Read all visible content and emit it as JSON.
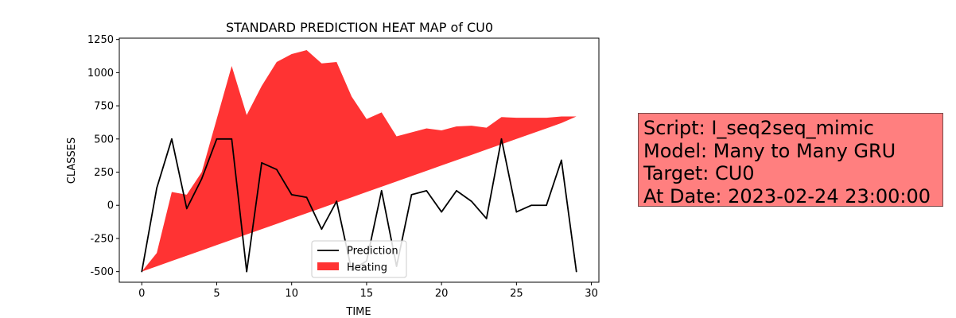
{
  "chart_data": {
    "type": "area",
    "title": "STANDARD PREDICTION HEAT MAP of CU0",
    "xlabel": "TIME",
    "ylabel": "CLASSES",
    "xlim": [
      -1.5,
      30.5
    ],
    "ylim": [
      -580,
      1260
    ],
    "xticks": [
      0,
      5,
      10,
      15,
      20,
      25,
      30
    ],
    "yticks": [
      -500,
      -250,
      0,
      250,
      500,
      750,
      1000,
      1250
    ],
    "legend_position": "lower-center",
    "series": [
      {
        "name": "Prediction",
        "kind": "line",
        "color": "#000000",
        "x": [
          0,
          1,
          2,
          3,
          4,
          5,
          6,
          7,
          8,
          9,
          10,
          11,
          12,
          13,
          14,
          15,
          16,
          17,
          18,
          19,
          20,
          21,
          22,
          23,
          24,
          25,
          26,
          27,
          28,
          29
        ],
        "values": [
          -500,
          130,
          500,
          -25,
          200,
          500,
          500,
          -500,
          320,
          270,
          80,
          60,
          -180,
          30,
          -490,
          -420,
          110,
          -460,
          80,
          110,
          -50,
          110,
          30,
          -100,
          500,
          -50,
          0,
          0,
          340,
          -500
        ]
      },
      {
        "name": "Heating",
        "kind": "band",
        "color": "#ff0000",
        "opacity": 0.8,
        "x": [
          0,
          1,
          2,
          3,
          4,
          5,
          6,
          7,
          8,
          9,
          10,
          11,
          12,
          13,
          14,
          15,
          16,
          17,
          18,
          19,
          20,
          21,
          22,
          23,
          24,
          25,
          26,
          27,
          28,
          29
        ],
        "lower": [
          -500,
          -460,
          -420,
          -380,
          -340,
          -300,
          -260,
          -220,
          -180,
          -140,
          -100,
          -60,
          -20,
          20,
          60,
          100,
          140,
          180,
          220,
          260,
          300,
          340,
          380,
          420,
          460,
          500,
          540,
          580,
          620,
          670
        ],
        "upper": [
          -500,
          -360,
          100,
          80,
          250,
          650,
          1050,
          680,
          900,
          1080,
          1140,
          1170,
          1070,
          1080,
          820,
          650,
          700,
          520,
          550,
          580,
          565,
          595,
          600,
          585,
          665,
          660,
          660,
          660,
          670,
          670
        ]
      }
    ]
  },
  "info_box": {
    "lines": [
      "Script: I_seq2seq_mimic",
      "Model: Many to Many GRU",
      "Target: CU0",
      "At Date: 2023-02-24 23:00:00"
    ]
  }
}
